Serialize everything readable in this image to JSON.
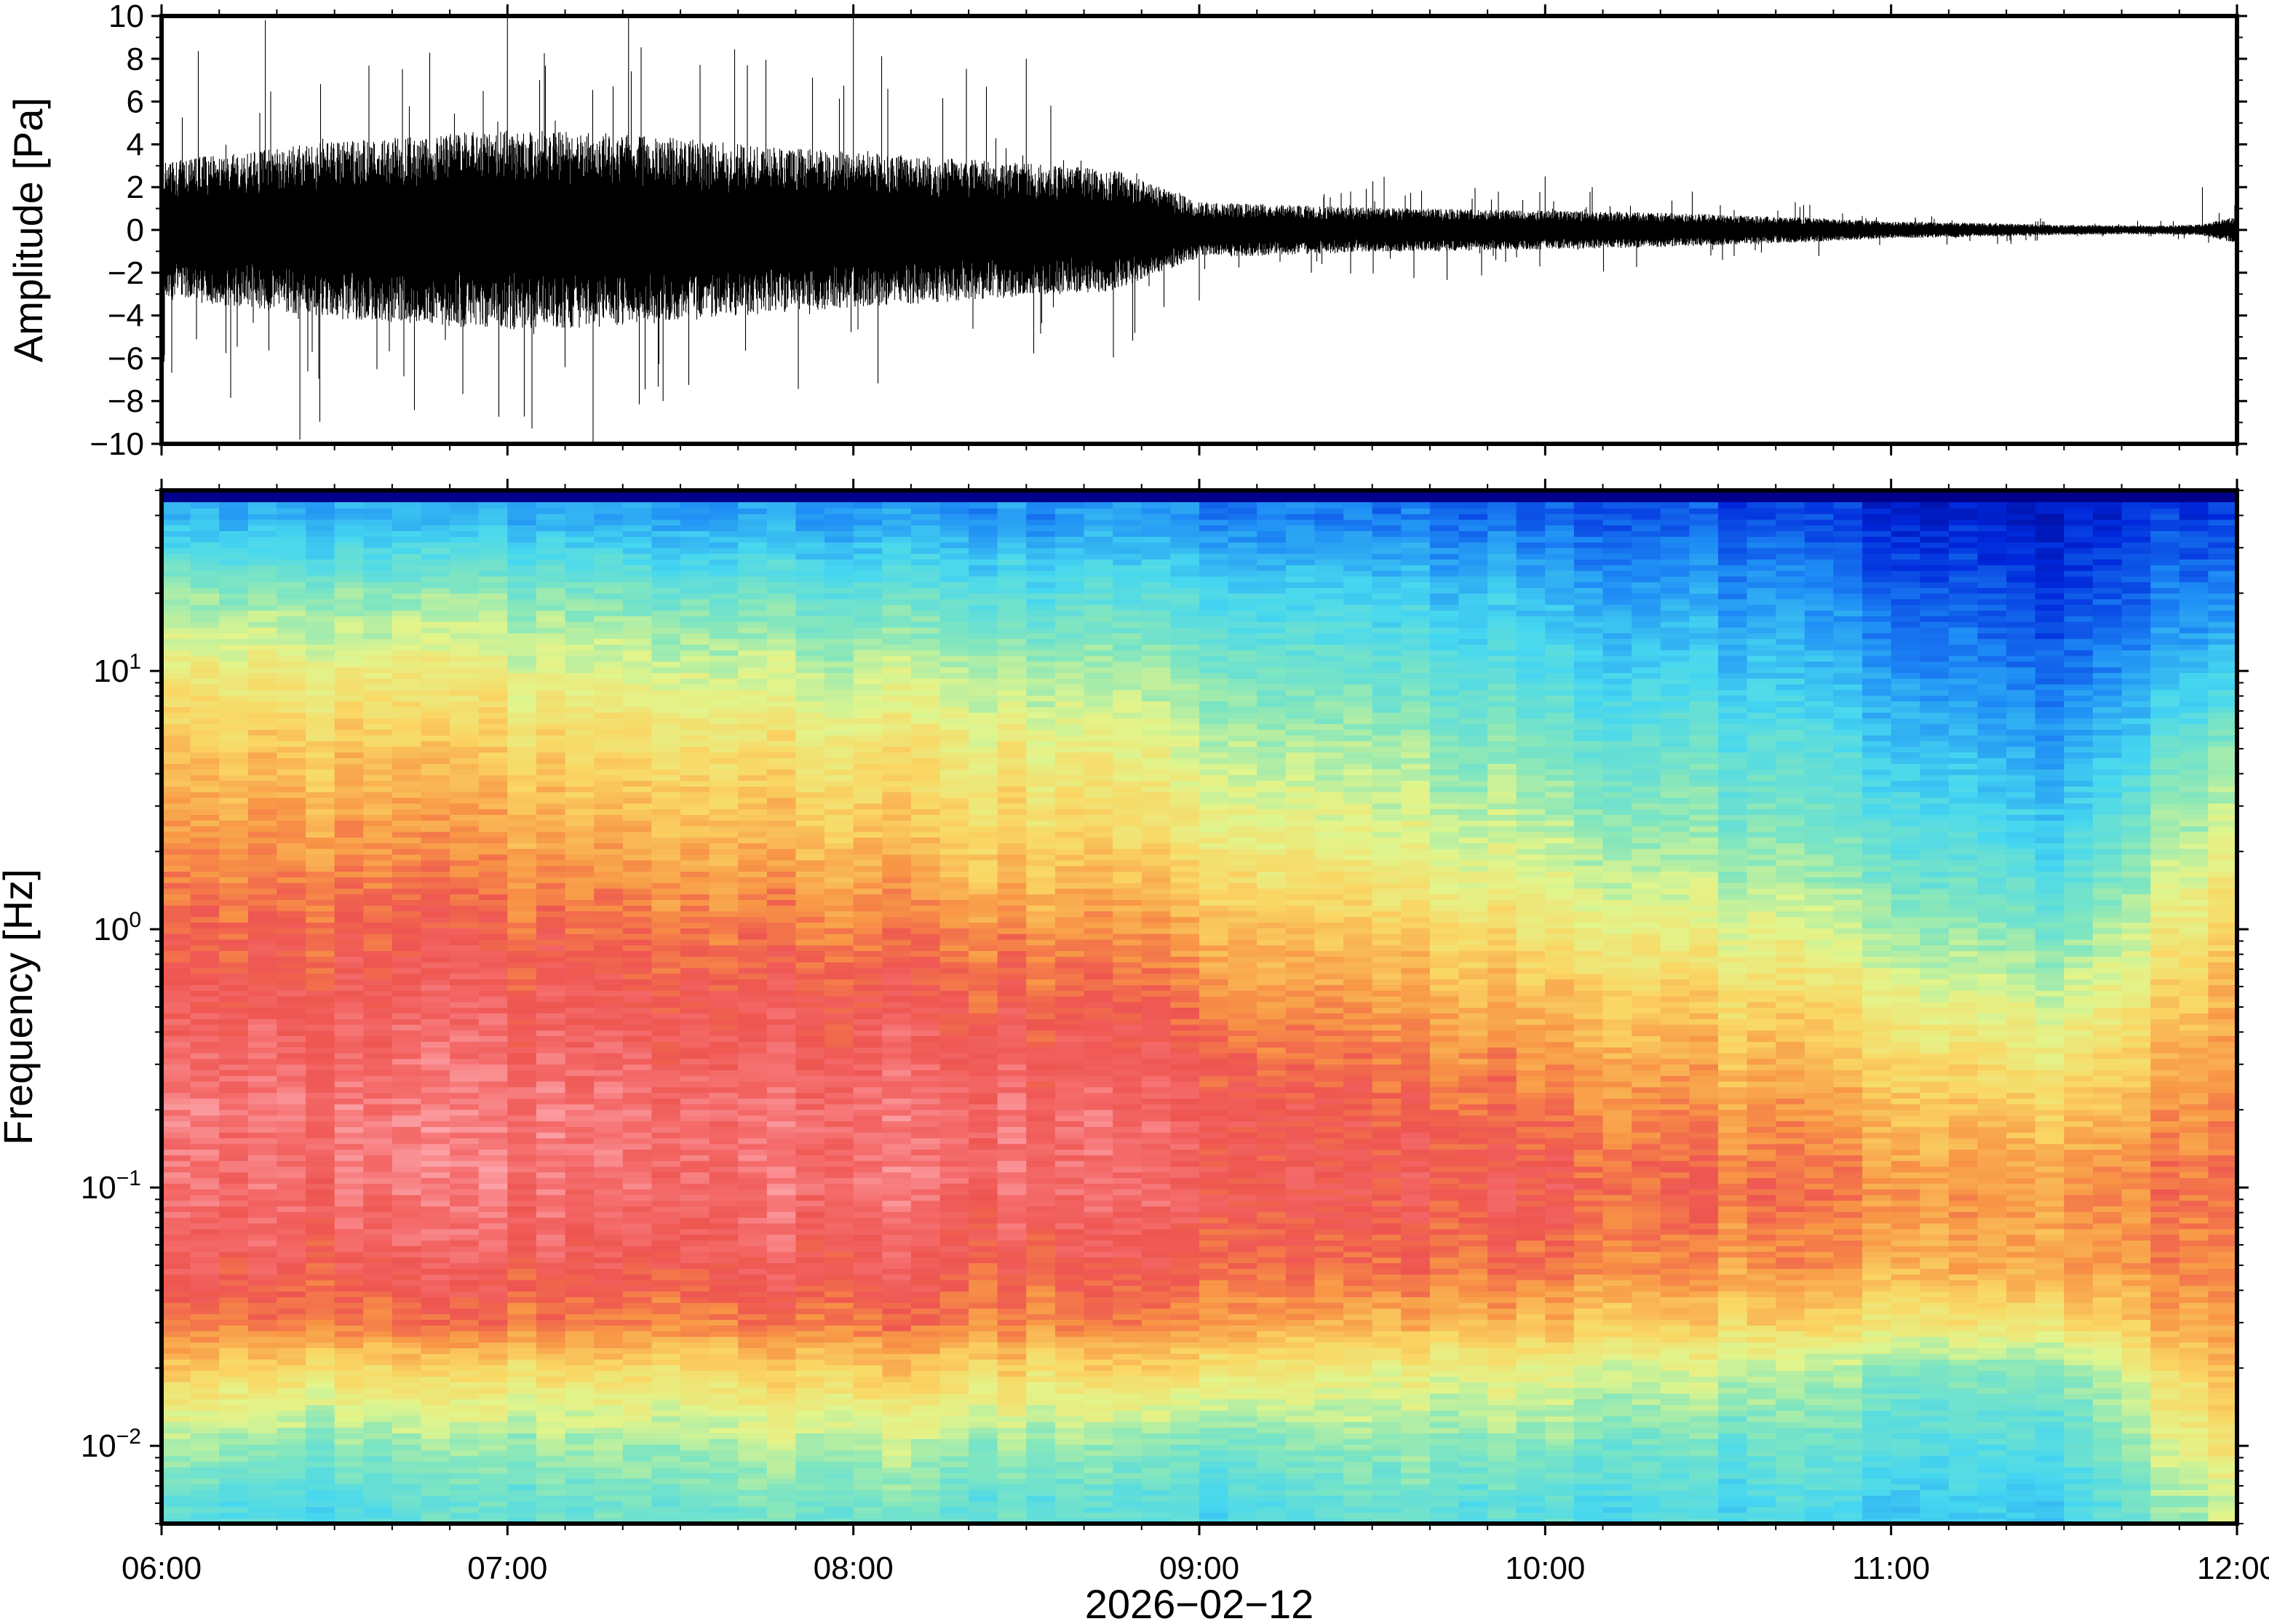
{
  "chart_data": [
    {
      "type": "line",
      "title": "",
      "ylabel": "Amplitude [Pa]",
      "xlabel": "",
      "ylim": [
        -10,
        10
      ],
      "yticks": [
        "10",
        "8",
        "6",
        "4",
        "2",
        "0",
        "−2",
        "−4",
        "−6",
        "−8",
        "−10"
      ],
      "ytick_values": [
        10,
        8,
        6,
        4,
        2,
        0,
        -2,
        -4,
        -6,
        -8,
        -10
      ],
      "xlim": [
        "06:00",
        "12:00"
      ],
      "series": [
        {
          "color": "#000000",
          "envelope_time_hours": [
            6.0,
            6.25,
            6.5,
            6.75,
            7.0,
            7.25,
            7.5,
            7.75,
            8.0,
            8.25,
            8.5,
            8.75,
            9.0,
            9.25,
            9.5,
            9.75,
            10.0,
            10.25,
            10.5,
            10.75,
            11.0,
            11.25,
            11.5,
            11.75,
            11.9,
            12.0
          ],
          "envelope_amplitude_pa": [
            2.5,
            2.8,
            3.2,
            3.4,
            3.6,
            3.5,
            3.3,
            3.0,
            2.8,
            2.6,
            2.4,
            2.2,
            1.0,
            0.9,
            0.8,
            0.75,
            0.7,
            0.65,
            0.55,
            0.45,
            0.3,
            0.25,
            0.18,
            0.15,
            0.2,
            0.5
          ],
          "peak_spikes_pa": [
            [
              6.3,
              9.8
            ],
            [
              6.4,
              -9.8
            ],
            [
              7.0,
              9.9
            ],
            [
              7.35,
              9.9
            ],
            [
              7.45,
              -8.0
            ],
            [
              8.0,
              9.9
            ],
            [
              8.5,
              8.0
            ],
            [
              9.0,
              -3.3
            ],
            [
              10.0,
              2.5
            ],
            [
              11.9,
              2.0
            ]
          ]
        }
      ],
      "grid": false
    },
    {
      "type": "heatmap",
      "title": "",
      "ylabel": "Frequency [Hz]",
      "xlabel": "2026−02−12",
      "yscale": "log",
      "ylim": [
        0.005,
        50
      ],
      "yticks": [
        {
          "base": "10",
          "exp": "1",
          "value": 10
        },
        {
          "base": "10",
          "exp": "0",
          "value": 1
        },
        {
          "base": "10",
          "exp": "−1",
          "value": 0.1
        },
        {
          "base": "10",
          "exp": "−2",
          "value": 0.01
        }
      ],
      "xticks": [
        "06:00",
        "07:00",
        "08:00",
        "09:00",
        "10:00",
        "11:00",
        "12:00"
      ],
      "xlim": [
        "06:00",
        "12:00"
      ],
      "colormap": "jet",
      "colorbar": false,
      "description_of_values": "relative spectral power",
      "time_hours": [
        6.0,
        6.5,
        7.0,
        7.5,
        8.0,
        8.5,
        9.0,
        9.5,
        10.0,
        10.5,
        11.0,
        11.5,
        12.0
      ],
      "frequency_hz": [
        40,
        20,
        10,
        5,
        2,
        1,
        0.5,
        0.2,
        0.1,
        0.05,
        0.03,
        0.02,
        0.01,
        0.006
      ],
      "power_normalized": [
        [
          0.3,
          0.5,
          0.62,
          0.7,
          0.78,
          0.84,
          0.88,
          0.93,
          0.92,
          0.88,
          0.82,
          0.7,
          0.52,
          0.42
        ],
        [
          0.3,
          0.5,
          0.63,
          0.72,
          0.8,
          0.86,
          0.9,
          0.94,
          0.93,
          0.89,
          0.82,
          0.68,
          0.5,
          0.4
        ],
        [
          0.3,
          0.5,
          0.62,
          0.7,
          0.79,
          0.86,
          0.9,
          0.95,
          0.94,
          0.9,
          0.84,
          0.68,
          0.52,
          0.45
        ],
        [
          0.3,
          0.48,
          0.6,
          0.69,
          0.78,
          0.85,
          0.9,
          0.95,
          0.94,
          0.9,
          0.83,
          0.7,
          0.55,
          0.48
        ],
        [
          0.28,
          0.45,
          0.57,
          0.66,
          0.75,
          0.83,
          0.89,
          0.94,
          0.94,
          0.9,
          0.84,
          0.72,
          0.56,
          0.48
        ],
        [
          0.27,
          0.43,
          0.55,
          0.64,
          0.72,
          0.81,
          0.88,
          0.93,
          0.93,
          0.88,
          0.82,
          0.7,
          0.52,
          0.44
        ],
        [
          0.25,
          0.4,
          0.5,
          0.58,
          0.67,
          0.76,
          0.84,
          0.9,
          0.91,
          0.86,
          0.8,
          0.68,
          0.48,
          0.4
        ],
        [
          0.23,
          0.37,
          0.46,
          0.54,
          0.63,
          0.72,
          0.8,
          0.88,
          0.89,
          0.85,
          0.76,
          0.64,
          0.52,
          0.46
        ],
        [
          0.2,
          0.32,
          0.4,
          0.48,
          0.57,
          0.66,
          0.75,
          0.84,
          0.88,
          0.84,
          0.74,
          0.62,
          0.5,
          0.42
        ],
        [
          0.17,
          0.28,
          0.36,
          0.44,
          0.52,
          0.61,
          0.71,
          0.8,
          0.85,
          0.8,
          0.7,
          0.58,
          0.46,
          0.4
        ],
        [
          0.13,
          0.22,
          0.3,
          0.38,
          0.47,
          0.56,
          0.66,
          0.76,
          0.82,
          0.78,
          0.68,
          0.52,
          0.44,
          0.38
        ],
        [
          0.08,
          0.14,
          0.2,
          0.28,
          0.38,
          0.47,
          0.58,
          0.7,
          0.78,
          0.76,
          0.66,
          0.5,
          0.4,
          0.36
        ],
        [
          0.18,
          0.28,
          0.4,
          0.55,
          0.66,
          0.74,
          0.8,
          0.85,
          0.88,
          0.86,
          0.83,
          0.78,
          0.72,
          0.62
        ]
      ],
      "grid": false
    }
  ]
}
